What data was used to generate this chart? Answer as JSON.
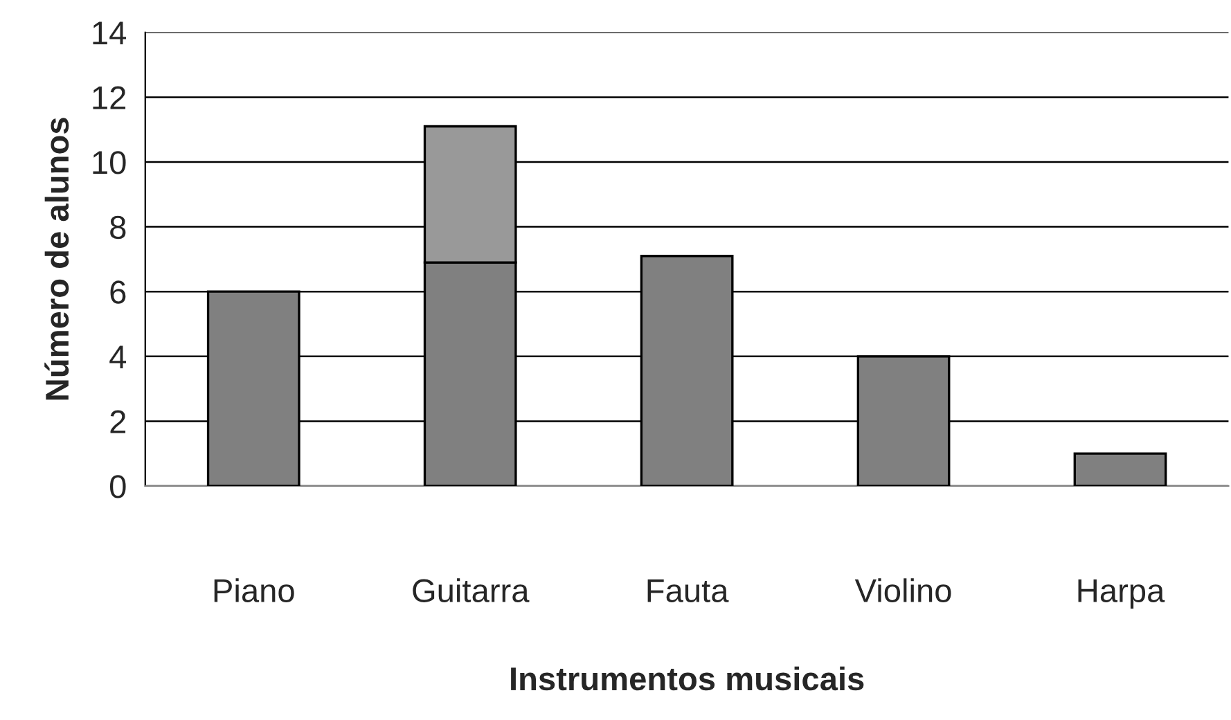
{
  "chart_data": {
    "type": "bar",
    "stacked": true,
    "xlabel": "Instrumentos musicais",
    "ylabel": "Número de alunos",
    "categories": [
      "Piano",
      "Guitarra",
      "Fauta",
      "Violino",
      "Harpa"
    ],
    "series": [
      {
        "color": "#808080",
        "values": [
          6,
          6.9,
          7.1,
          4,
          1
        ]
      },
      {
        "color": "#999999",
        "values": [
          null,
          4.2,
          null,
          null,
          null
        ]
      }
    ],
    "ylim": [
      0,
      14
    ],
    "yticks": [
      0,
      2,
      4,
      6,
      8,
      10,
      12,
      14
    ],
    "grid": "y",
    "legend": false
  }
}
